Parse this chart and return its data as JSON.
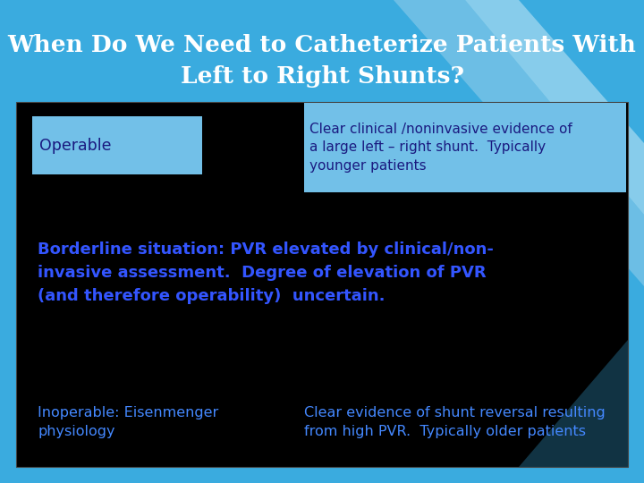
{
  "title_line1": "When Do We Need to Catheterize Patients With",
  "title_line2": "Left to Right Shunts?",
  "title_color": "#ffffff",
  "title_fontsize": 19,
  "title_font": "serif",
  "bg_color": "#3aabdf",
  "main_box_color": "#000000",
  "highlight_box_color": "#72c0e8",
  "operable_label": "Operable",
  "operable_text_color": "#1a1a80",
  "operable_box_color": "#72c0e8",
  "clear_text": "Clear clinical /noninvasive evidence of\na large left – right shunt.  Typically\nyounger patients",
  "clear_text_color": "#1a1a80",
  "clear_box_color": "#72c0e8",
  "borderline_text": "Borderline situation: PVR elevated by clinical/non-\ninvasive assessment.  Degree of elevation of PVR\n(and therefore operability)  uncertain.",
  "borderline_text_color": "#3355ff",
  "inoperable_label": "Inoperable: Eisenmenger\nphysiology",
  "inoperable_text_color": "#4488ff",
  "inoperable_clear_text": "Clear evidence of shunt reversal resulting\nfrom high PVR.  Typically older patients",
  "inoperable_clear_text_color": "#4488ff"
}
